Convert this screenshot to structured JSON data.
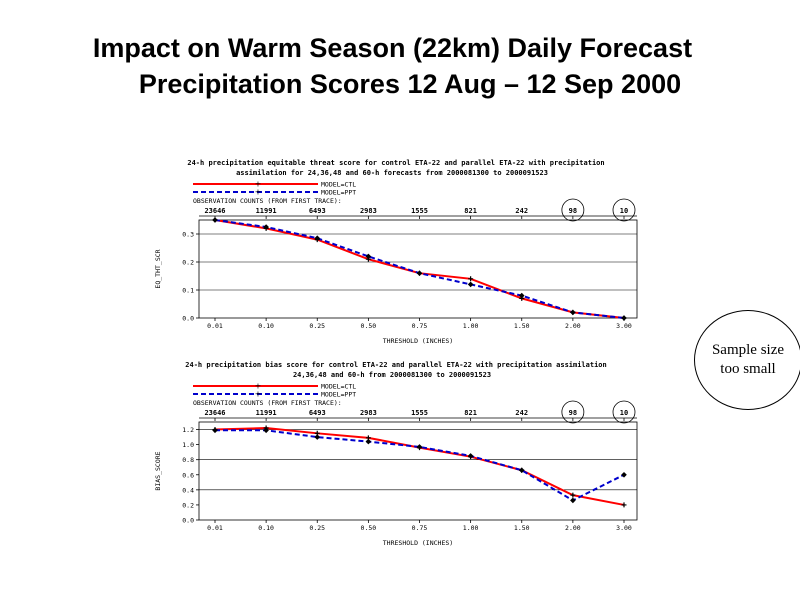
{
  "slide": {
    "title_line1": "Impact on Warm Season (22km) Daily Forecast",
    "title_line2": "Precipitation Scores 12 Aug – 12 Sep 2000",
    "callout": "Sample size\ntoo small"
  },
  "colors": {
    "ctl": "#ff0000",
    "ppt": "#0000cc",
    "marker": "#000000",
    "axis": "#000000"
  },
  "chart_data": [
    {
      "id": "ets",
      "type": "line",
      "title_line1": "24-h precipitation equitable threat score for control ETA-22 and parallel ETA-22 with precipitation",
      "title_line2": "assimilation for 24,36,48 and 60-h forecasts from 2000081300 to 2000091523",
      "legend": [
        "MODEL=CTL",
        "MODEL=PPT"
      ],
      "counts_label": "OBSERVATION COUNTS (FROM FIRST TRACE):",
      "counts": [
        "23646",
        "11991",
        "6493",
        "2983",
        "1555",
        "821",
        "242",
        "98",
        "10"
      ],
      "circled_counts": [
        7,
        8
      ],
      "categories": [
        "0.01",
        "0.10",
        "0.25",
        "0.50",
        "0.75",
        "1.00",
        "1.50",
        "2.00",
        "3.00"
      ],
      "xlabel": "THRESHOLD (INCHES)",
      "ylabel": "EQ_THT_SCR",
      "yticks": [
        "0.0",
        "0.1",
        "0.2",
        "0.3"
      ],
      "ylim": [
        0,
        0.35
      ],
      "gridlines": [
        0.1,
        0.2,
        0.3
      ],
      "series": [
        {
          "name": "MODEL=CTL",
          "color": "#ff0000",
          "dashed": false,
          "values": [
            0.35,
            0.32,
            0.28,
            0.21,
            0.16,
            0.14,
            0.07,
            0.02,
            0.0
          ]
        },
        {
          "name": "MODEL=PPT",
          "color": "#0000cc",
          "dashed": true,
          "values": [
            0.35,
            0.325,
            0.285,
            0.22,
            0.16,
            0.12,
            0.08,
            0.02,
            0.0
          ]
        }
      ]
    },
    {
      "id": "bias",
      "type": "line",
      "title_line1": "24-h precipitation bias score for control ETA-22 and parallel ETA-22 with precipitation assimilation",
      "title_line2": "24,36,48 and 60-h from 2000081300 to 2000091523",
      "legend": [
        "MODEL=CTL",
        "MODEL=PPT"
      ],
      "counts_label": "OBSERVATION COUNTS (FROM FIRST TRACE):",
      "counts": [
        "23646",
        "11991",
        "6493",
        "2983",
        "1555",
        "821",
        "242",
        "98",
        "10"
      ],
      "circled_counts": [
        7,
        8
      ],
      "categories": [
        "0.01",
        "0.10",
        "0.25",
        "0.50",
        "0.75",
        "1.00",
        "1.50",
        "2.00",
        "3.00"
      ],
      "xlabel": "THRESHOLD (INCHES)",
      "ylabel": "BIAS_SCORE",
      "yticks": [
        "0.0",
        "0.2",
        "0.4",
        "0.6",
        "0.8",
        "1.0",
        "1.2"
      ],
      "ylim": [
        0,
        1.3
      ],
      "gridlines": [
        0.4,
        0.8,
        1.2
      ],
      "series": [
        {
          "name": "MODEL=CTL",
          "color": "#ff0000",
          "dashed": false,
          "values": [
            1.2,
            1.22,
            1.15,
            1.09,
            0.96,
            0.84,
            0.66,
            0.33,
            0.2
          ]
        },
        {
          "name": "MODEL=PPT",
          "color": "#0000cc",
          "dashed": true,
          "values": [
            1.19,
            1.19,
            1.1,
            1.04,
            0.97,
            0.85,
            0.66,
            0.26,
            0.6
          ]
        }
      ]
    }
  ]
}
